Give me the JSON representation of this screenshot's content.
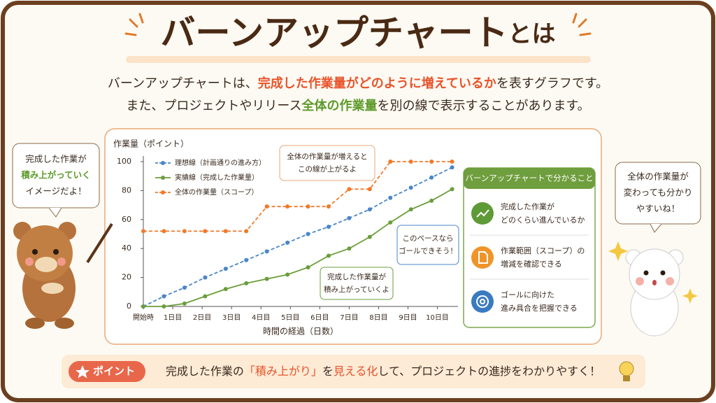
{
  "header": {
    "title": "バーンアップチャート",
    "title_suffix": "とは"
  },
  "intro": {
    "line1": [
      "バーンアップチャートは、",
      "完成した作業量がどのように増えているか",
      "を表すグラフです。"
    ],
    "line2": [
      "また、プロジェクトやリリース",
      "全体の作業量",
      "を別の線で表示することがあります。"
    ]
  },
  "chart_data": {
    "type": "line",
    "y_label": "作業量（ポイント）",
    "x_label": "時間の経過（日数）",
    "x": [
      0,
      0.7,
      1.4,
      2.1,
      2.8,
      3.5,
      4.2,
      4.9,
      5.6,
      6.3,
      7,
      7.7,
      8.4,
      9.1,
      9.8,
      10.5
    ],
    "xlim": [
      0,
      10.7
    ],
    "xticks": [
      {
        "value": 0,
        "label": "開始時"
      },
      {
        "value": 1,
        "label": "1日目"
      },
      {
        "value": 2,
        "label": "2日目"
      },
      {
        "value": 3,
        "label": "3日目"
      },
      {
        "value": 4,
        "label": "4日目"
      },
      {
        "value": 5,
        "label": "5日目"
      },
      {
        "value": 6,
        "label": "6日目"
      },
      {
        "value": 7,
        "label": "7日目"
      },
      {
        "value": 8,
        "label": "8日目"
      },
      {
        "value": 9,
        "label": "9日目"
      },
      {
        "value": 10,
        "label": "10日目"
      }
    ],
    "ylim": [
      0,
      100
    ],
    "yticks": [
      0,
      20,
      40,
      60,
      80,
      100
    ],
    "grid": false,
    "legend": "upper left",
    "series": [
      {
        "name": "理想線（計画通りの進み方）",
        "color": "#4a86c8",
        "dashed": true,
        "values": [
          0,
          7,
          13,
          20,
          26,
          32,
          38,
          44,
          50,
          55,
          61,
          67,
          75,
          82,
          89,
          96
        ]
      },
      {
        "name": "実績線（完成した作業量）",
        "color": "#6a9e3a",
        "dashed": false,
        "values": [
          0,
          0,
          2,
          7,
          12,
          16,
          19,
          22,
          27,
          35,
          40,
          48,
          58,
          67,
          73,
          81
        ]
      },
      {
        "name": "全体の作業量（スコープ）",
        "color": "#f07a2a",
        "dashed": true,
        "values": [
          52,
          52,
          52,
          52,
          52,
          52,
          69,
          69,
          69,
          69,
          81,
          81,
          100,
          100,
          100,
          100
        ]
      }
    ],
    "annotations": [
      {
        "lines": [
          "全体の作業量が増えると",
          "この線が上がるよ"
        ]
      },
      {
        "lines": [
          "このペースなら",
          "ゴールできそう！"
        ]
      },
      {
        "lines": [
          "完成した作業量が",
          "積み上がっていくよ"
        ]
      }
    ]
  },
  "side_panel": {
    "title": "バーンアップチャートで分かること",
    "items": [
      [
        "完成した作業が",
        "どのくらい進んでいるか"
      ],
      [
        "作業範囲（スコープ）の",
        "増減を確認できる"
      ],
      [
        "ゴールに向けた",
        "進み具合を把握できる"
      ]
    ]
  },
  "bubbles": {
    "left": [
      "完成した作業が",
      "積み上がっていく",
      "イメージだよ！"
    ],
    "right": [
      "全体の作業量が",
      "変わっても分かり",
      "やすいね！"
    ]
  },
  "point": {
    "badge": "ポイント",
    "text": [
      "完成した作業の",
      "「積み上がり」",
      "を",
      "見える化",
      "して、プロジェクトの進捗をわかりやすく！"
    ]
  }
}
